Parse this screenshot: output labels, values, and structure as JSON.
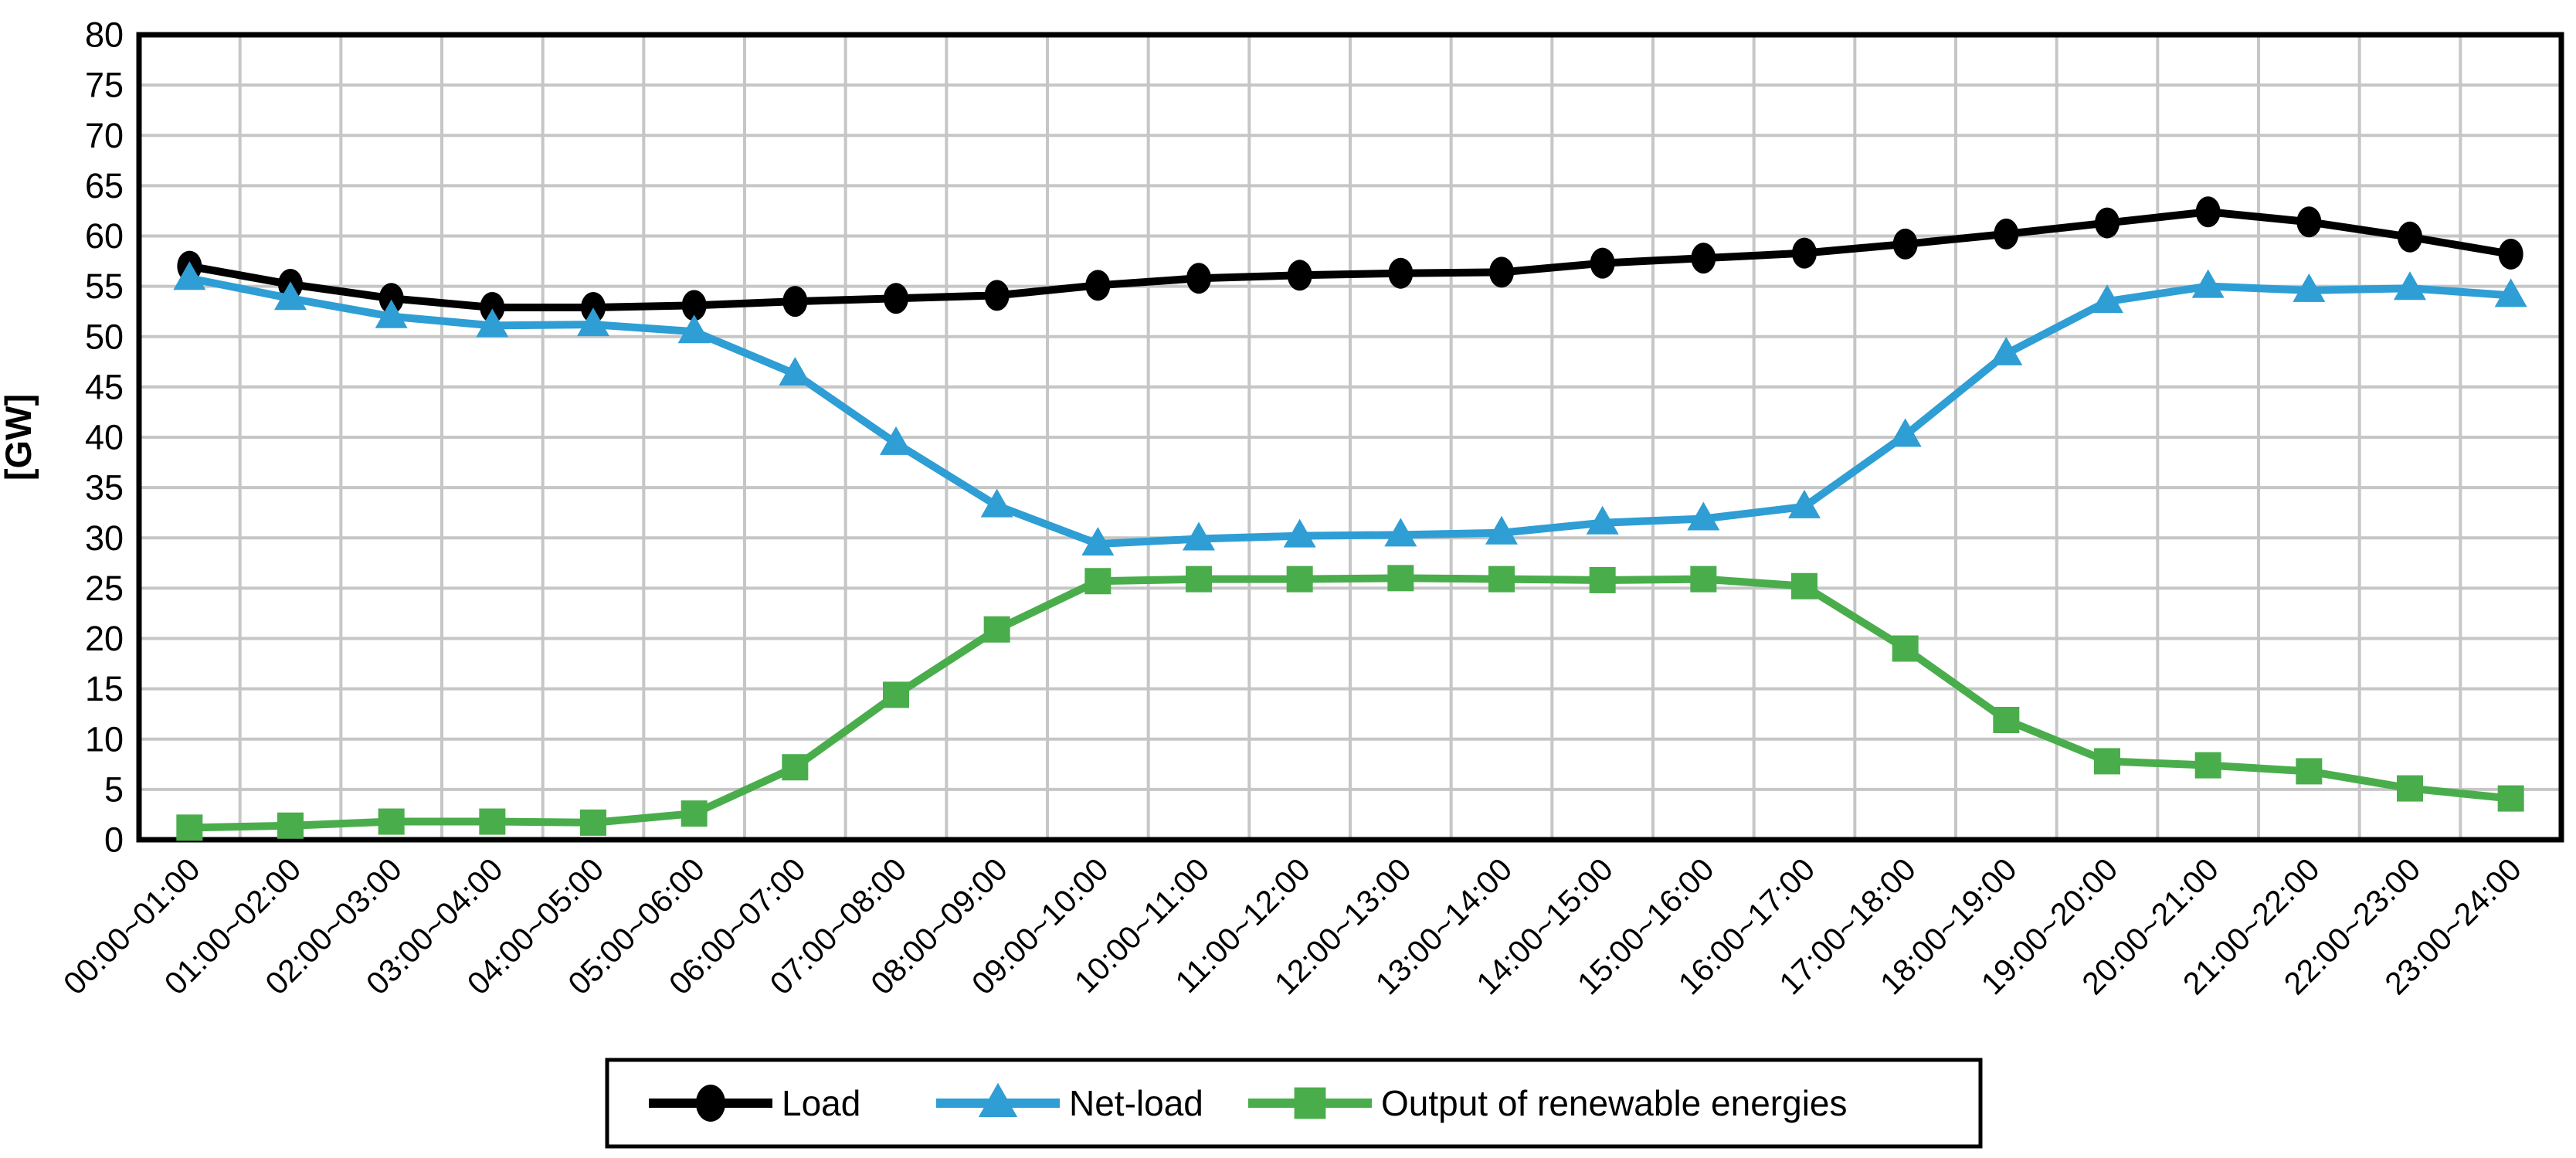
{
  "chart_data": {
    "type": "line",
    "title": "",
    "xlabel": "",
    "ylabel": "[GW]",
    "ylim": [
      0,
      80
    ],
    "y_ticks": [
      0,
      5,
      10,
      15,
      20,
      25,
      30,
      35,
      40,
      45,
      50,
      55,
      60,
      65,
      70,
      75,
      80
    ],
    "grid": "horizontal major every 5 GW and vertical category boundaries, gray on white",
    "legend_position": "bottom-center, boxed",
    "categories": [
      "00:00~01:00",
      "01:00~02:00",
      "02:00~03:00",
      "03:00~04:00",
      "04:00~05:00",
      "05:00~06:00",
      "06:00~07:00",
      "07:00~08:00",
      "08:00~09:00",
      "09:00~10:00",
      "10:00~11:00",
      "11:00~12:00",
      "12:00~13:00",
      "13:00~14:00",
      "14:00~15:00",
      "15:00~16:00",
      "16:00~17:00",
      "17:00~18:00",
      "18:00~19:00",
      "19:00~20:00",
      "20:00~21:00",
      "21:00~22:00",
      "22:00~23:00",
      "23:00~24:00"
    ],
    "series": [
      {
        "name": "Load",
        "color": "#000000",
        "marker": "circle",
        "values": [
          57.0,
          55.2,
          53.8,
          52.9,
          52.9,
          53.1,
          53.5,
          53.8,
          54.1,
          55.1,
          55.8,
          56.1,
          56.3,
          56.4,
          57.3,
          57.8,
          58.3,
          59.2,
          60.2,
          61.3,
          62.4,
          61.4,
          59.9,
          58.2
        ]
      },
      {
        "name": "Net-load",
        "color": "#2E9ED5",
        "marker": "triangle-up",
        "values": [
          55.8,
          53.8,
          52.0,
          51.1,
          51.2,
          50.5,
          46.3,
          39.4,
          33.2,
          29.4,
          29.9,
          30.2,
          30.3,
          30.5,
          31.5,
          31.9,
          33.1,
          40.2,
          48.3,
          53.5,
          55.0,
          54.6,
          54.8,
          54.1
        ]
      },
      {
        "name": "Output of renewable energies",
        "color": "#4AAD4C",
        "marker": "square",
        "values": [
          1.2,
          1.4,
          1.8,
          1.8,
          1.7,
          2.6,
          7.2,
          14.4,
          20.9,
          25.7,
          25.9,
          25.9,
          26.0,
          25.9,
          25.8,
          25.9,
          25.2,
          19.0,
          11.9,
          7.8,
          7.4,
          6.8,
          5.1,
          4.1
        ]
      }
    ],
    "style": {
      "background": "#ffffff",
      "plot_border_color": "#000000",
      "gridline_color": "#c6c6c6",
      "tick_label_color": "#000000"
    }
  }
}
